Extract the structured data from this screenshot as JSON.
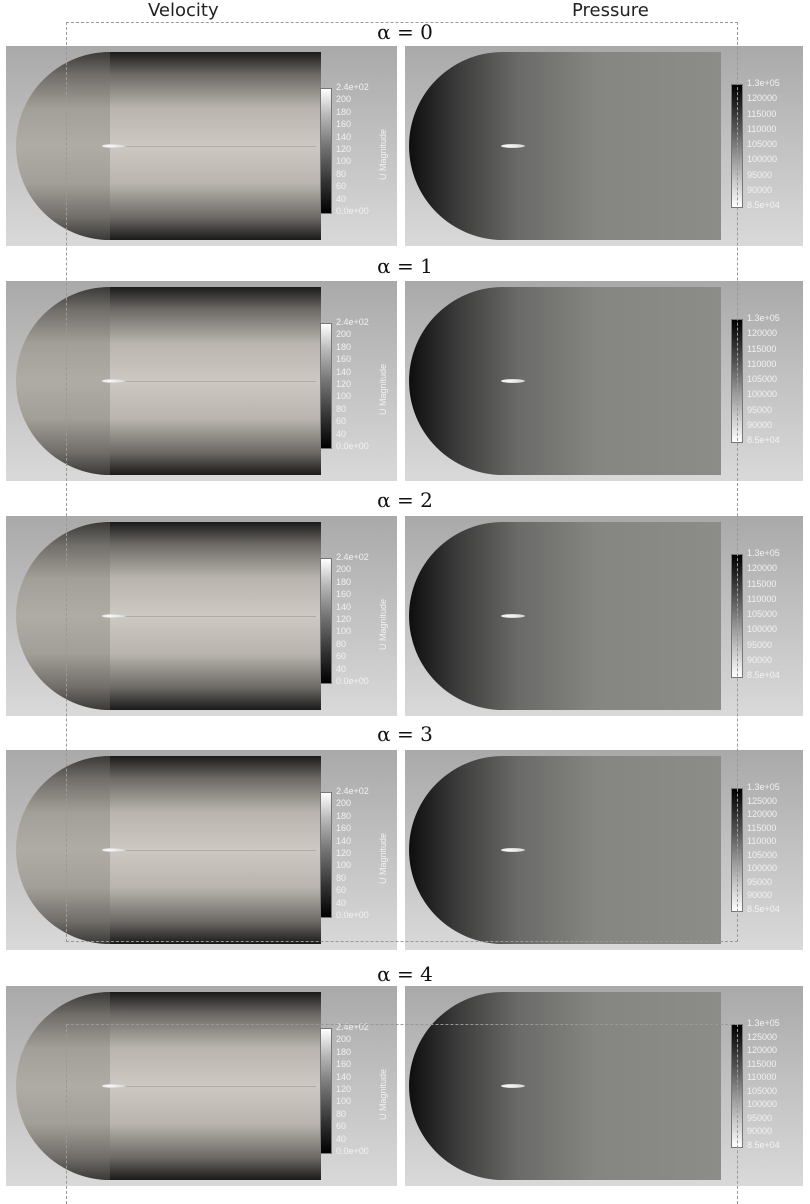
{
  "headers": {
    "velocity": "Velocity",
    "pressure": "Pressure"
  },
  "rows": [
    {
      "alpha": "α = 0"
    },
    {
      "alpha": "α = 1"
    },
    {
      "alpha": "α = 2"
    },
    {
      "alpha": "α = 3"
    },
    {
      "alpha": "α = 4"
    }
  ],
  "velocity_colorbar": {
    "title": "U Magnitude",
    "ticks": [
      "2.4e+02",
      "200",
      "180",
      "160",
      "140",
      "120",
      "100",
      "80",
      "60",
      "40",
      "0.0e+00"
    ]
  },
  "pressure_colorbars": [
    {
      "title": "p",
      "ticks": [
        "1.3e+05",
        "120000",
        "115000",
        "110000",
        "105000",
        "100000",
        "95000",
        "90000",
        "8.5e+04"
      ]
    },
    {
      "title": "p",
      "ticks": [
        "1.3e+05",
        "120000",
        "115000",
        "110000",
        "105000",
        "100000",
        "95000",
        "90000",
        "8.5e+04"
      ]
    },
    {
      "title": "p",
      "ticks": [
        "1.3e+05",
        "120000",
        "115000",
        "110000",
        "105000",
        "100000",
        "95000",
        "90000",
        "8.5e+04"
      ]
    },
    {
      "title": "p",
      "ticks": [
        "1.3e+05",
        "125000",
        "120000",
        "115000",
        "110000",
        "105000",
        "100000",
        "95000",
        "90000",
        "8.5e+04"
      ]
    },
    {
      "title": "p",
      "ticks": [
        "1.3e+05",
        "125000",
        "120000",
        "115000",
        "110000",
        "105000",
        "100000",
        "95000",
        "90000",
        "8.5e+04"
      ]
    }
  ]
}
